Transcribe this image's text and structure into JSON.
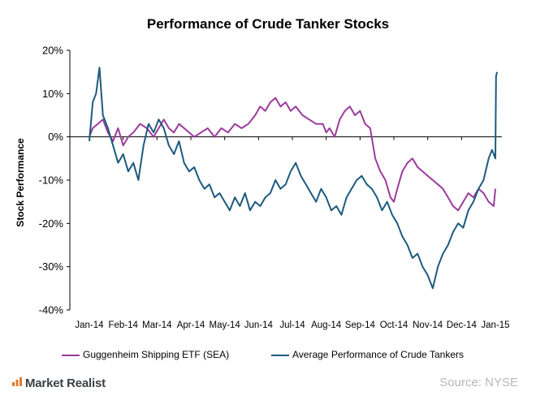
{
  "chart_data": {
    "type": "line",
    "title": "Performance of Crude Tanker Stocks",
    "xlabel": "",
    "ylabel": "Stock Performance",
    "ylim": [
      -40,
      20
    ],
    "yticks": [
      "20%",
      "10%",
      "0%",
      "-10%",
      "-20%",
      "-30%",
      "-40%"
    ],
    "ytick_values": [
      20,
      10,
      0,
      -10,
      -20,
      -30,
      -40
    ],
    "categories": [
      "Jan-14",
      "Feb-14",
      "Mar-14",
      "Apr-14",
      "May-14",
      "Jun-14",
      "Jul-14",
      "Aug-14",
      "Sep-14",
      "Oct-14",
      "Nov-14",
      "Dec-14",
      "Jan-15"
    ],
    "grid": false,
    "legend": "bottom",
    "series": [
      {
        "name": "Guggenheim Shipping ETF (SEA)",
        "color": "#9b3b9c",
        "x": [
          0,
          0.1,
          0.25,
          0.4,
          0.55,
          0.7,
          0.85,
          1.0,
          1.15,
          1.3,
          1.5,
          1.7,
          1.9,
          2.05,
          2.2,
          2.35,
          2.5,
          2.65,
          2.8,
          2.95,
          3.1,
          3.3,
          3.5,
          3.7,
          3.9,
          4.1,
          4.3,
          4.5,
          4.7,
          4.9,
          5.05,
          5.2,
          5.35,
          5.5,
          5.65,
          5.8,
          5.95,
          6.1,
          6.3,
          6.5,
          6.7,
          6.9,
          7.0,
          7.1,
          7.25,
          7.4,
          7.55,
          7.7,
          7.85,
          8.0,
          8.15,
          8.3,
          8.45,
          8.6,
          8.75,
          8.9,
          9.0,
          9.1,
          9.25,
          9.4,
          9.55,
          9.7,
          9.85,
          10.0,
          10.15,
          10.3,
          10.45,
          10.6,
          10.75,
          10.9,
          11.05,
          11.2,
          11.35,
          11.5,
          11.65,
          11.8,
          11.95,
          12.0
        ],
        "values": [
          0,
          2,
          3,
          4,
          1,
          -1,
          2,
          -2,
          0,
          1,
          3,
          2,
          0,
          2,
          4,
          2,
          1,
          3,
          2,
          1,
          0,
          1,
          2,
          0,
          2,
          1,
          3,
          2,
          3,
          5,
          7,
          6,
          8,
          9,
          7,
          8,
          6,
          7,
          5,
          4,
          3,
          3,
          1,
          2,
          0,
          4,
          6,
          7,
          5,
          6,
          3,
          2,
          -5,
          -8,
          -10,
          -14,
          -15,
          -12,
          -8,
          -6,
          -5,
          -7,
          -8,
          -9,
          -10,
          -11,
          -12,
          -14,
          -16,
          -17,
          -15,
          -13,
          -14,
          -12,
          -13,
          -15,
          -16,
          -12
        ]
      },
      {
        "name": "Average Performance of Crude Tankers",
        "color": "#1c5a7d",
        "x": [
          0,
          0.1,
          0.2,
          0.3,
          0.4,
          0.55,
          0.7,
          0.85,
          1.0,
          1.15,
          1.3,
          1.45,
          1.6,
          1.75,
          1.9,
          2.05,
          2.2,
          2.35,
          2.5,
          2.65,
          2.8,
          2.95,
          3.1,
          3.25,
          3.4,
          3.55,
          3.7,
          3.85,
          4.0,
          4.15,
          4.3,
          4.45,
          4.6,
          4.75,
          4.9,
          5.05,
          5.2,
          5.35,
          5.5,
          5.65,
          5.8,
          5.95,
          6.1,
          6.25,
          6.4,
          6.55,
          6.7,
          6.85,
          7.0,
          7.15,
          7.3,
          7.45,
          7.6,
          7.75,
          7.9,
          8.05,
          8.2,
          8.35,
          8.5,
          8.65,
          8.8,
          8.95,
          9.1,
          9.25,
          9.4,
          9.55,
          9.7,
          9.85,
          10.0,
          10.15,
          10.3,
          10.45,
          10.6,
          10.75,
          10.9,
          11.05,
          11.2,
          11.35,
          11.5,
          11.65,
          11.8,
          11.9,
          11.95,
          12.0
        ],
        "values": [
          -1,
          8,
          10,
          16,
          5,
          2,
          -2,
          -6,
          -4,
          -8,
          -6,
          -10,
          -2,
          3,
          1,
          4,
          2,
          -2,
          -4,
          -1,
          -6,
          -8,
          -7,
          -10,
          -12,
          -11,
          -14,
          -13,
          -15,
          -17,
          -14,
          -16,
          -13,
          -17,
          -15,
          -16,
          -14,
          -13,
          -10,
          -12,
          -11,
          -8,
          -6,
          -9,
          -11,
          -13,
          -15,
          -12,
          -14,
          -17,
          -16,
          -18,
          -14,
          -12,
          -10,
          -9,
          -11,
          -12,
          -14,
          -17,
          -15,
          -18,
          -20,
          -23,
          -25,
          -28,
          -27,
          -30,
          -32,
          -35,
          -30,
          -27,
          -25,
          -22,
          -20,
          -21,
          -17,
          -15,
          -12,
          -10,
          -5,
          -3,
          -4,
          -5
        ],
        "extra_tail": [
          {
            "x": 12.02,
            "y": 14
          },
          {
            "x": 12.05,
            "y": 15
          }
        ]
      }
    ]
  },
  "footer": {
    "brand": "Market Realist",
    "source": "Source: NYSE"
  }
}
